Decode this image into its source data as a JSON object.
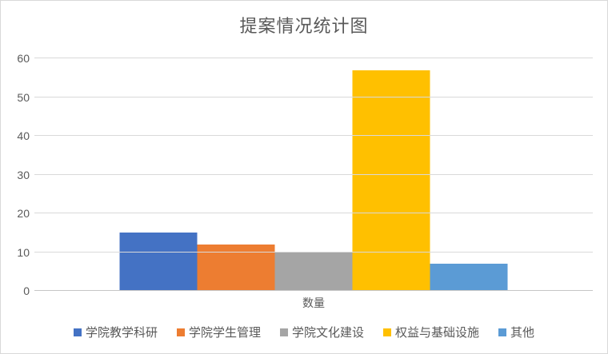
{
  "chart_data": {
    "type": "bar",
    "title": "提案情况统计图",
    "categories": [
      "数量"
    ],
    "series": [
      {
        "name": "学院教学科研",
        "color": "#4472C4",
        "values": [
          15
        ]
      },
      {
        "name": "学院学生管理",
        "color": "#ED7D31",
        "values": [
          12
        ]
      },
      {
        "name": "学院文化建设",
        "color": "#A5A5A5",
        "values": [
          10
        ]
      },
      {
        "name": "权益与基础设施",
        "color": "#FFC000",
        "values": [
          57
        ]
      },
      {
        "name": "其他",
        "color": "#5B9BD5",
        "values": [
          7
        ]
      }
    ],
    "xlabel": "数量",
    "ylabel": "",
    "ylim": [
      0,
      60
    ],
    "yticks": [
      0,
      10,
      20,
      30,
      40,
      50,
      60
    ],
    "grid": true,
    "legend_position": "bottom"
  },
  "style": {
    "gridline_color": "#d9d9d9",
    "axis_line_color": "#c6c6c6",
    "text_color": "#595959",
    "border_color": "#d9d9d9",
    "background": "#ffffff"
  }
}
